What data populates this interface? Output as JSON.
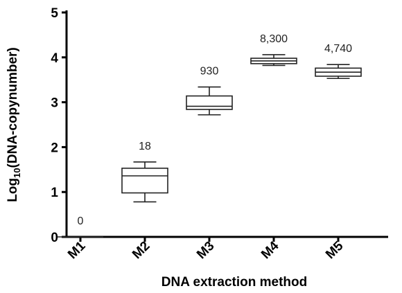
{
  "chart_data": {
    "type": "box",
    "title": "",
    "xlabel": "DNA extraction method",
    "ylabel_prefix": "Log",
    "ylabel_sub": "10",
    "ylabel_suffix": "(DNA-copynumber)",
    "ylim": [
      0,
      5
    ],
    "yticks": [
      "0",
      "1",
      "2",
      "3",
      "4",
      "5"
    ],
    "grid": false,
    "legend": "none",
    "categories": [
      "M1",
      "M2",
      "M3",
      "M4",
      "M5"
    ],
    "boxes": [
      {
        "category": "M1",
        "min": 0,
        "q1": 0,
        "median": 0,
        "q3": 0,
        "max": 0,
        "label": "0"
      },
      {
        "category": "M2",
        "min": 0.78,
        "q1": 0.98,
        "median": 1.36,
        "q3": 1.53,
        "max": 1.67,
        "label": "18"
      },
      {
        "category": "M3",
        "min": 2.72,
        "q1": 2.84,
        "median": 2.91,
        "q3": 3.14,
        "max": 3.34,
        "label": "930"
      },
      {
        "category": "M4",
        "min": 3.82,
        "q1": 3.86,
        "median": 3.92,
        "q3": 3.98,
        "max": 4.06,
        "label": "8,300"
      },
      {
        "category": "M5",
        "min": 3.53,
        "q1": 3.58,
        "median": 3.67,
        "q3": 3.76,
        "max": 3.84,
        "label": "4,740"
      }
    ]
  }
}
